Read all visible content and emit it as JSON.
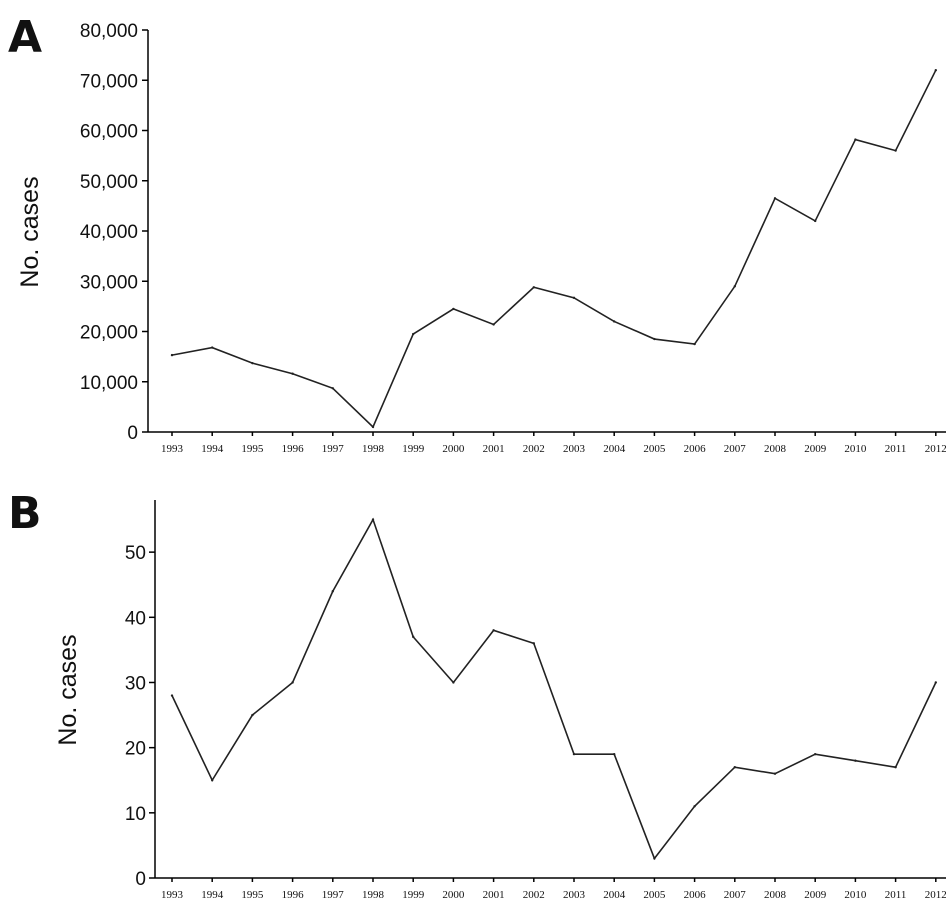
{
  "chart_data": [
    {
      "panel": "A",
      "type": "line",
      "title": "",
      "xlabel": "",
      "ylabel": "No. cases",
      "x": [
        "1993",
        "1994",
        "1995",
        "1996",
        "1997",
        "1998",
        "1999",
        "2000",
        "2001",
        "2002",
        "2003",
        "2004",
        "2005",
        "2006",
        "2007",
        "2008",
        "2009",
        "2010",
        "2011",
        "2012"
      ],
      "values": [
        15300,
        16800,
        13700,
        11600,
        8700,
        1000,
        19500,
        24500,
        21400,
        28800,
        26700,
        22000,
        18500,
        17500,
        29000,
        46500,
        42000,
        58200,
        56000,
        72000
      ],
      "ylim": [
        0,
        80000
      ],
      "yticks": [
        "0",
        "10,000",
        "20,000",
        "30,000",
        "40,000",
        "50,000",
        "60,000",
        "70,000",
        "80,000"
      ],
      "ytick_values": [
        0,
        10000,
        20000,
        30000,
        40000,
        50000,
        60000,
        70000,
        80000
      ],
      "grid": false
    },
    {
      "panel": "B",
      "type": "line",
      "title": "",
      "xlabel": "",
      "ylabel": "No. cases",
      "x": [
        "1993",
        "1994",
        "1995",
        "1996",
        "1997",
        "1998",
        "1999",
        "2000",
        "2001",
        "2002",
        "2003",
        "2004",
        "2005",
        "2006",
        "2007",
        "2008",
        "2009",
        "2010",
        "2011",
        "2012"
      ],
      "values": [
        28,
        15,
        25,
        30,
        44,
        55,
        37,
        30,
        38,
        36,
        19,
        19,
        3,
        11,
        17,
        16,
        19,
        18,
        17,
        30
      ],
      "ylim": [
        0,
        58
      ],
      "yticks": [
        "0",
        "10",
        "20",
        "30",
        "40",
        "50"
      ],
      "ytick_values": [
        0,
        10,
        20,
        30,
        40,
        50
      ],
      "grid": false
    }
  ]
}
